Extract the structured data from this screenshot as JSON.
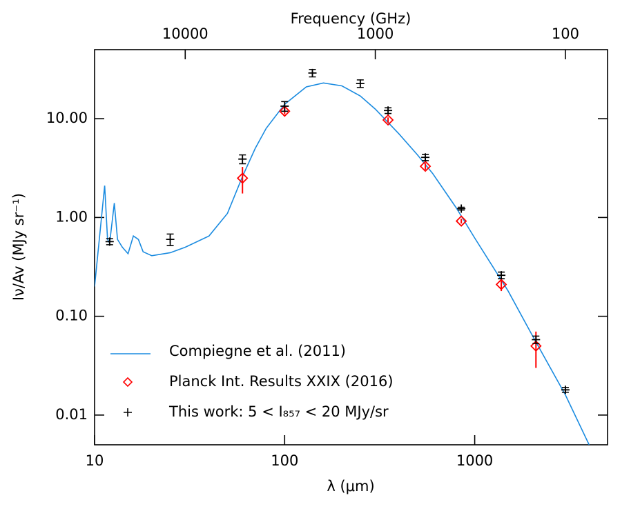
{
  "chart_data": {
    "type": "scatter",
    "xlabel": "λ (μm)",
    "ylabel": "Iν/Av (MJy sr⁻¹)",
    "x2label": "Frequency (GHz)",
    "xscale": "log",
    "yscale": "log",
    "xlim": [
      10,
      5000
    ],
    "ylim": [
      0.005,
      50
    ],
    "xticks": [
      10,
      100,
      1000
    ],
    "yticks": [
      {
        "value": 0.01,
        "label": "0.01"
      },
      {
        "value": 0.1,
        "label": "0.10"
      },
      {
        "value": 1,
        "label": "1.00"
      },
      {
        "value": 10,
        "label": "10.00"
      }
    ],
    "x2lim": [
      29979,
      60
    ],
    "x2ticks": [
      10000,
      1000,
      100
    ],
    "legend": "lower left",
    "series": [
      {
        "name": "Compiegne et al. (2011)",
        "color": "#1a8be0",
        "marker": "line",
        "x": [
          10,
          11.3,
          11.7,
          12.0,
          12.7,
          13.2,
          14,
          15,
          16,
          17,
          18,
          20,
          25,
          30,
          40,
          50,
          60,
          70,
          80,
          100,
          130,
          160,
          200,
          250,
          300,
          400,
          500,
          600,
          800,
          1000,
          1500,
          2000,
          3000,
          4000
        ],
        "values": [
          0.2,
          2.1,
          0.6,
          0.55,
          1.4,
          0.6,
          0.5,
          0.43,
          0.65,
          0.6,
          0.45,
          0.41,
          0.44,
          0.5,
          0.65,
          1.1,
          2.6,
          5,
          8,
          14,
          21,
          23,
          21.5,
          17,
          12.5,
          7,
          4.3,
          2.8,
          1.25,
          0.62,
          0.18,
          0.065,
          0.016,
          0.005
        ]
      },
      {
        "name": "Planck Int. Results XXIX (2016)",
        "color": "#ff0000",
        "marker": "diamond",
        "x": [
          60,
          100,
          350,
          550,
          850,
          1380,
          2100
        ],
        "values": [
          2.5,
          11.9,
          9.7,
          3.3,
          0.92,
          0.21,
          0.05
        ],
        "errors": [
          0.75,
          0.8,
          0.6,
          0.25,
          0.05,
          0.03,
          0.02
        ]
      },
      {
        "name": "This work: 5 < I₈₅₇ < 20 MJy/sr",
        "color": "#000000",
        "marker": "plus",
        "x": [
          12,
          25,
          60,
          100,
          140,
          250,
          350,
          550,
          850,
          1380,
          2100,
          3000
        ],
        "values": [
          0.57,
          0.6,
          3.9,
          13.4,
          29,
          22.7,
          12.1,
          4.06,
          1.23,
          0.26,
          0.058,
          0.018
        ],
        "errors": [
          0.04,
          0.08,
          0.4,
          1.5,
          2.5,
          2,
          0.8,
          0.3,
          0.04,
          0.02,
          0.005,
          0.001
        ]
      }
    ]
  }
}
